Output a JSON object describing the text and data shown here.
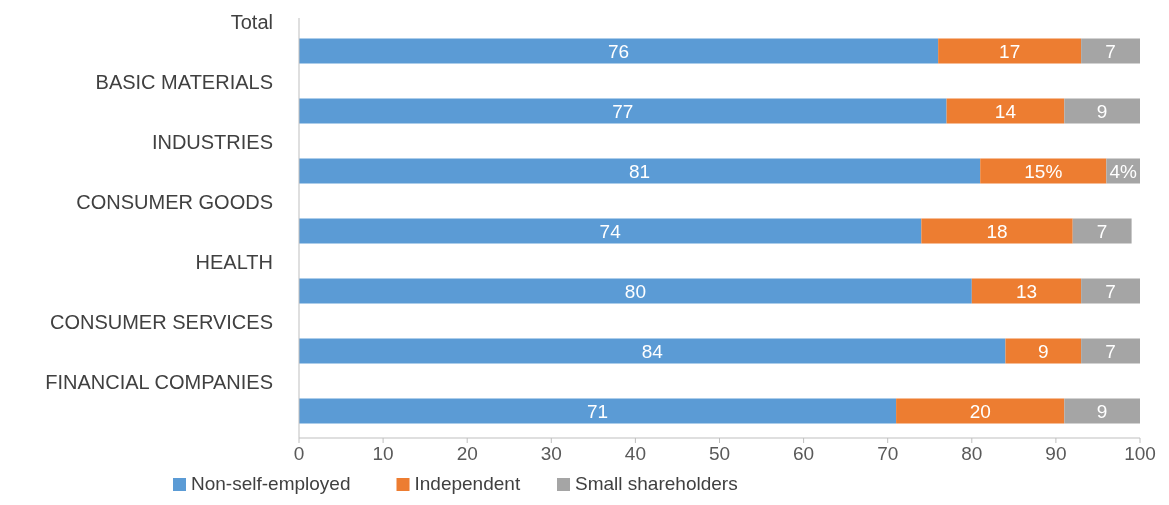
{
  "chart_data": {
    "type": "bar",
    "orientation": "horizontal",
    "stacked": true,
    "categories": [
      "Total",
      "BASIC MATERIALS",
      "INDUSTRIES",
      "CONSUMER GOODS",
      "HEALTH",
      "CONSUMER SERVICES",
      "FINANCIAL COMPANIES"
    ],
    "series": [
      {
        "name": "Non-self-employed",
        "color": "#5b9bd5",
        "values": [
          76,
          77,
          81,
          74,
          80,
          84,
          71
        ],
        "value_labels": [
          "76",
          "77",
          "81",
          "74",
          "80",
          "84",
          "71"
        ]
      },
      {
        "name": "Independent",
        "color": "#ed7d31",
        "values": [
          17,
          14,
          15,
          18,
          13,
          9,
          20
        ],
        "value_labels": [
          "17",
          "14",
          "15%",
          "18",
          "13",
          "9",
          "20"
        ]
      },
      {
        "name": "Small shareholders",
        "color": "#a5a5a5",
        "values": [
          7,
          9,
          4,
          7,
          7,
          7,
          9
        ],
        "value_labels": [
          "7",
          "9",
          "4%",
          "7",
          "7",
          "7",
          "9"
        ]
      }
    ],
    "xlim": [
      0,
      100
    ],
    "xticks": [
      0,
      10,
      20,
      30,
      40,
      50,
      60,
      70,
      80,
      90,
      100
    ],
    "grid": false,
    "legend": "bottom"
  }
}
